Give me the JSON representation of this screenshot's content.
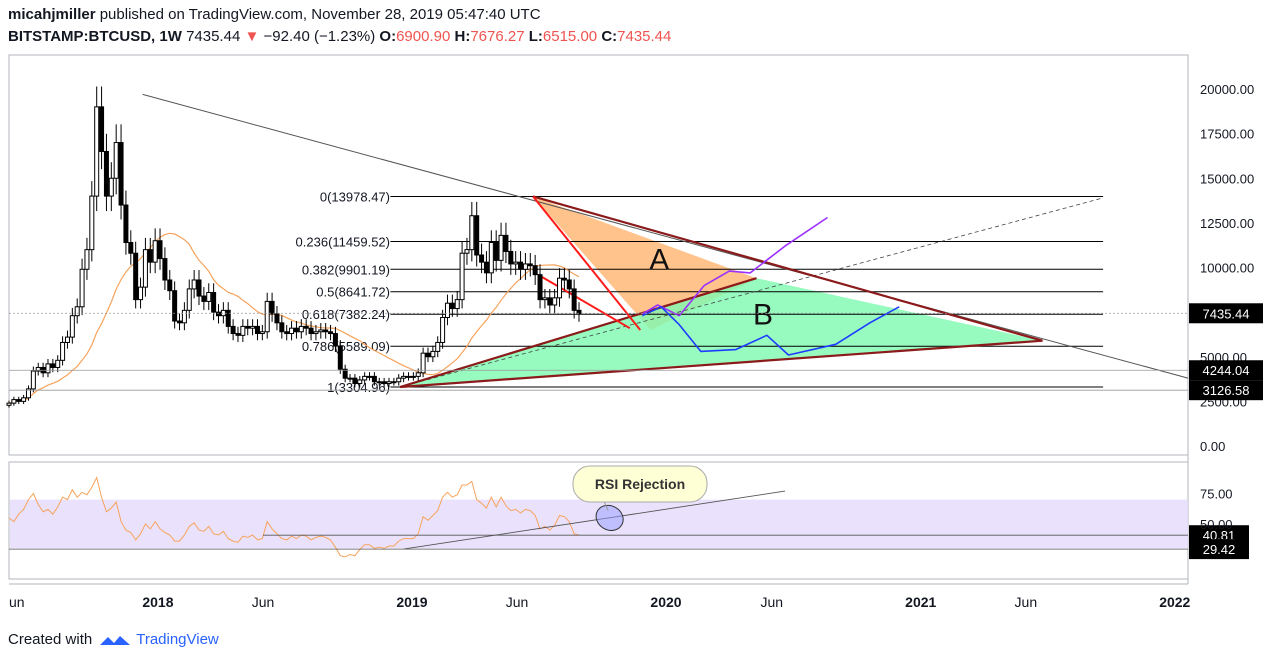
{
  "header": {
    "author": "micahjmiller",
    "published": "published on TradingView.com, November 28, 2019 05:47:40 UTC",
    "symbol": "BITSTAMP:BTCUSD, 1W",
    "last": "7435.44",
    "change": "−92.40 (−1.23%)",
    "o_label": "O:",
    "o_value": "6900.90",
    "h_label": "H:",
    "h_value": "7676.27",
    "l_label": "L:",
    "l_value": "6515.00",
    "c_label": "C:",
    "c_value": "7435.44",
    "down_arrow": "▼"
  },
  "footer": {
    "created_with": "Created with",
    "brand": "TradingView"
  },
  "colors": {
    "up": "#000000",
    "down": "#000000",
    "ma": "#f7a35c",
    "rsi": "#f7a35c",
    "rsi_band": "#e6ddfb",
    "fib": "#000000",
    "triangle_a": "#ffb877",
    "triangle_b": "#7dfab0",
    "trend": "#8b1a1a",
    "purple_path": "#9b30ff",
    "blue_path": "#1e3cff"
  },
  "chart_data": [
    {
      "type": "candlestick",
      "title": "BITSTAMP:BTCUSD, 1W",
      "y_axis": {
        "ticks": [
          20000,
          17500,
          15000,
          12500,
          10000,
          7500,
          5000,
          2500,
          0
        ],
        "tick_labels": [
          "20000.00",
          "17500.00",
          "15000.00",
          "12500.00",
          "10000.00",
          "7500.00",
          "5000.00",
          "2500.00",
          "0.00"
        ],
        "ylim": [
          -500,
          21000
        ]
      },
      "x_axis": {
        "tick_labels": [
          "un",
          "2018",
          "Jun",
          "2019",
          "Jun",
          "2020",
          "Jun",
          "2021",
          "Jun",
          "2022"
        ],
        "range": [
          "2017-06-01",
          "2022-01-20"
        ]
      },
      "price_labels": [
        {
          "value": 7435.44,
          "label": "7435.44"
        },
        {
          "value": 4244.04,
          "label": "4244.04"
        },
        {
          "value": 3126.58,
          "label": "3126.58"
        }
      ],
      "fibonacci": [
        {
          "label": "0(13978.47)",
          "value": 13978.47
        },
        {
          "label": "0.236(11459.52)",
          "value": 11459.52
        },
        {
          "label": "0.382(9901.19)",
          "value": 9901.19
        },
        {
          "label": "0.5(8641.72)",
          "value": 8641.72
        },
        {
          "label": "0.618(7382.24)",
          "value": 7382.24
        },
        {
          "label": "0.786(5589.09)",
          "value": 5589.09
        },
        {
          "label": "1(3304.96)",
          "value": 3304.96
        }
      ],
      "annotations": [
        {
          "label": "A"
        },
        {
          "label": "B"
        }
      ],
      "approx_weekly_closes": [
        2400,
        2600,
        2500,
        2700,
        3200,
        4200,
        4400,
        4100,
        4600,
        4400,
        4800,
        5800,
        6100,
        7300,
        7800,
        9900,
        11000,
        14000,
        19000,
        16500,
        14000,
        15000,
        17000,
        13500,
        11400,
        10800,
        8200,
        8900,
        11000,
        10300,
        11500,
        10500,
        9300,
        8700,
        7000,
        6900,
        7600,
        8800,
        9300,
        8400,
        8100,
        8600,
        7500,
        7300,
        7600,
        6700,
        6300,
        6200,
        6700,
        6600,
        6700,
        6300,
        6400,
        8100,
        7400,
        6900,
        6400,
        6300,
        6600,
        6400,
        6700,
        6600,
        6300,
        6400,
        6500,
        6400,
        6300,
        5600,
        4300,
        3800,
        3800,
        3500,
        3700,
        3900,
        3900,
        3600,
        3600,
        3500,
        3600,
        3600,
        3800,
        3900,
        3900,
        3900,
        4100,
        5200,
        5000,
        5300,
        5800,
        7200,
        8000,
        7700,
        8200,
        10800,
        11000,
        12900,
        10700,
        10300,
        9700,
        11400,
        10400,
        11800,
        10900,
        10200,
        10300,
        9900,
        10200,
        10100,
        9600,
        8200,
        8300,
        7900,
        8300,
        9400,
        9300,
        8800,
        7600,
        7400
      ]
    },
    {
      "type": "line",
      "title": "RSI",
      "y_axis": {
        "ticks": [
          75,
          50
        ],
        "tick_labels": [
          "75.00",
          "50.00"
        ],
        "ylim": [
          25,
          90
        ]
      },
      "price_labels": [
        {
          "value": 40.81,
          "label": "40.81"
        },
        {
          "value": 29.42,
          "label": "29.42"
        }
      ],
      "band": [
        30,
        70
      ],
      "callout": "RSI Rejection",
      "approx_values": [
        55,
        52,
        58,
        62,
        70,
        75,
        66,
        60,
        62,
        58,
        64,
        72,
        70,
        78,
        72,
        76,
        74,
        80,
        88,
        72,
        60,
        63,
        68,
        52,
        45,
        43,
        37,
        42,
        50,
        46,
        52,
        46,
        43,
        41,
        36,
        36,
        41,
        48,
        51,
        45,
        44,
        48,
        42,
        41,
        44,
        38,
        36,
        35,
        40,
        39,
        41,
        37,
        38,
        52,
        46,
        42,
        38,
        37,
        40,
        38,
        41,
        40,
        37,
        39,
        40,
        39,
        37,
        31,
        24,
        23,
        25,
        24,
        29,
        33,
        33,
        30,
        31,
        30,
        32,
        32,
        36,
        38,
        38,
        38,
        42,
        56,
        53,
        57,
        61,
        72,
        76,
        72,
        74,
        82,
        82,
        85,
        70,
        67,
        63,
        72,
        64,
        72,
        65,
        61,
        62,
        59,
        62,
        61,
        57,
        46,
        48,
        45,
        49,
        57,
        56,
        52,
        42,
        41
      ]
    }
  ]
}
